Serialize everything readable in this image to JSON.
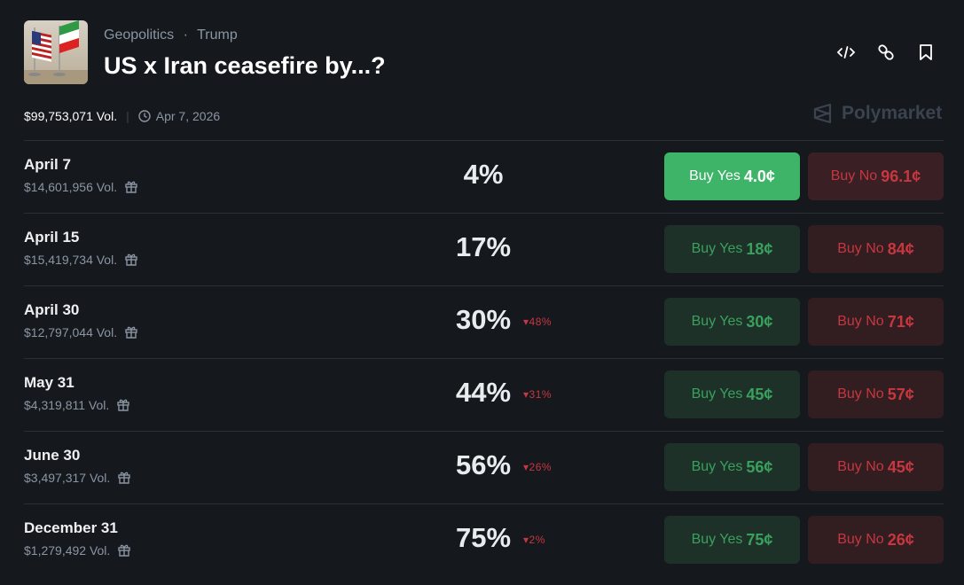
{
  "header": {
    "category": "Geopolitics",
    "tag": "Trump",
    "separator": "·",
    "title": "US x Iran ceasefire by...?",
    "volume": "$99,753,071 Vol.",
    "date": "Apr 7, 2026",
    "brand": "Polymarket"
  },
  "colors": {
    "yes": "#3db468",
    "no": "#c7373f",
    "background": "#15181d"
  },
  "markets": [
    {
      "name": "April 7",
      "volume": "$14,601,956 Vol.",
      "percent": "4%",
      "change": "",
      "yes": "Buy Yes",
      "yes_price": "4.0¢",
      "no": "Buy No",
      "no_price": "96.1¢"
    },
    {
      "name": "April 15",
      "volume": "$15,419,734 Vol.",
      "percent": "17%",
      "change": "",
      "yes": "Buy Yes",
      "yes_price": "18¢",
      "no": "Buy No",
      "no_price": "84¢"
    },
    {
      "name": "April 30",
      "volume": "$12,797,044 Vol.",
      "percent": "30%",
      "change": "▾48%",
      "yes": "Buy Yes",
      "yes_price": "30¢",
      "no": "Buy No",
      "no_price": "71¢"
    },
    {
      "name": "May 31",
      "volume": "$4,319,811 Vol.",
      "percent": "44%",
      "change": "▾31%",
      "yes": "Buy Yes",
      "yes_price": "45¢",
      "no": "Buy No",
      "no_price": "57¢"
    },
    {
      "name": "June 30",
      "volume": "$3,497,317 Vol.",
      "percent": "56%",
      "change": "▾26%",
      "yes": "Buy Yes",
      "yes_price": "56¢",
      "no": "Buy No",
      "no_price": "45¢"
    },
    {
      "name": "December 31",
      "volume": "$1,279,492 Vol.",
      "percent": "75%",
      "change": "▾2%",
      "yes": "Buy Yes",
      "yes_price": "75¢",
      "no": "Buy No",
      "no_price": "26¢"
    }
  ]
}
